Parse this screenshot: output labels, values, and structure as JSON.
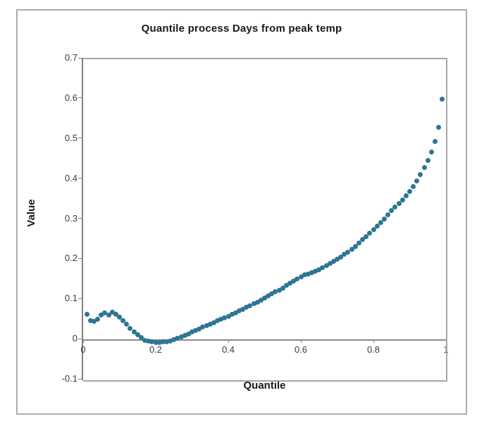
{
  "chart_data": {
    "type": "scatter",
    "title": "Quantile process Days from peak temp",
    "xlabel": "Quantile",
    "ylabel": "Value",
    "xlim": [
      0,
      1
    ],
    "ylim": [
      -0.1,
      0.7
    ],
    "grid": false,
    "legend": false,
    "marker_color": "#2e7495",
    "x_ticks": [
      0,
      0.2,
      0.4,
      0.6,
      0.8,
      1
    ],
    "x_tick_labels": [
      "0",
      "0.2",
      "0.4",
      "0.6",
      "0.8",
      "1"
    ],
    "y_ticks": [
      0.7,
      0.6,
      0.5,
      0.4,
      0.3,
      0.2,
      0.1,
      0,
      -0.1
    ],
    "y_tick_labels": [
      "0.7",
      "0.6",
      "0.5",
      "0.4",
      "0.3",
      "0.2",
      "0.1",
      "0",
      "-0.1"
    ],
    "x": [
      0.01,
      0.02,
      0.03,
      0.04,
      0.05,
      0.06,
      0.07,
      0.08,
      0.09,
      0.1,
      0.11,
      0.12,
      0.13,
      0.14,
      0.15,
      0.16,
      0.17,
      0.18,
      0.19,
      0.2,
      0.21,
      0.22,
      0.23,
      0.24,
      0.25,
      0.26,
      0.27,
      0.28,
      0.29,
      0.3,
      0.31,
      0.32,
      0.33,
      0.34,
      0.35,
      0.36,
      0.37,
      0.38,
      0.39,
      0.4,
      0.41,
      0.42,
      0.43,
      0.44,
      0.45,
      0.46,
      0.47,
      0.48,
      0.49,
      0.5,
      0.51,
      0.52,
      0.53,
      0.54,
      0.55,
      0.56,
      0.57,
      0.58,
      0.59,
      0.6,
      0.61,
      0.62,
      0.63,
      0.64,
      0.65,
      0.66,
      0.67,
      0.68,
      0.69,
      0.7,
      0.71,
      0.72,
      0.73,
      0.74,
      0.75,
      0.76,
      0.77,
      0.78,
      0.79,
      0.8,
      0.81,
      0.82,
      0.83,
      0.84,
      0.85,
      0.86,
      0.87,
      0.88,
      0.89,
      0.9,
      0.91,
      0.92,
      0.93,
      0.94,
      0.95,
      0.96,
      0.97,
      0.98,
      0.99
    ],
    "y": [
      0.065,
      0.048,
      0.046,
      0.052,
      0.063,
      0.068,
      0.063,
      0.069,
      0.065,
      0.057,
      0.049,
      0.04,
      0.03,
      0.021,
      0.013,
      0.006,
      0.0,
      -0.003,
      -0.005,
      -0.006,
      -0.006,
      -0.005,
      -0.004,
      -0.002,
      0.001,
      0.004,
      0.008,
      0.012,
      0.016,
      0.02,
      0.024,
      0.028,
      0.032,
      0.036,
      0.04,
      0.044,
      0.048,
      0.052,
      0.056,
      0.06,
      0.064,
      0.068,
      0.073,
      0.077,
      0.082,
      0.086,
      0.091,
      0.095,
      0.1,
      0.105,
      0.11,
      0.115,
      0.12,
      0.125,
      0.13,
      0.136,
      0.141,
      0.147,
      0.153,
      0.158,
      0.162,
      0.165,
      0.168,
      0.172,
      0.176,
      0.181,
      0.186,
      0.191,
      0.196,
      0.201,
      0.207,
      0.213,
      0.22,
      0.227,
      0.234,
      0.242,
      0.25,
      0.258,
      0.266,
      0.275,
      0.284,
      0.293,
      0.302,
      0.312,
      0.322,
      0.332,
      0.341,
      0.35,
      0.36,
      0.371,
      0.383,
      0.397,
      0.413,
      0.43,
      0.448,
      0.468,
      0.495,
      0.53,
      0.6
    ]
  }
}
